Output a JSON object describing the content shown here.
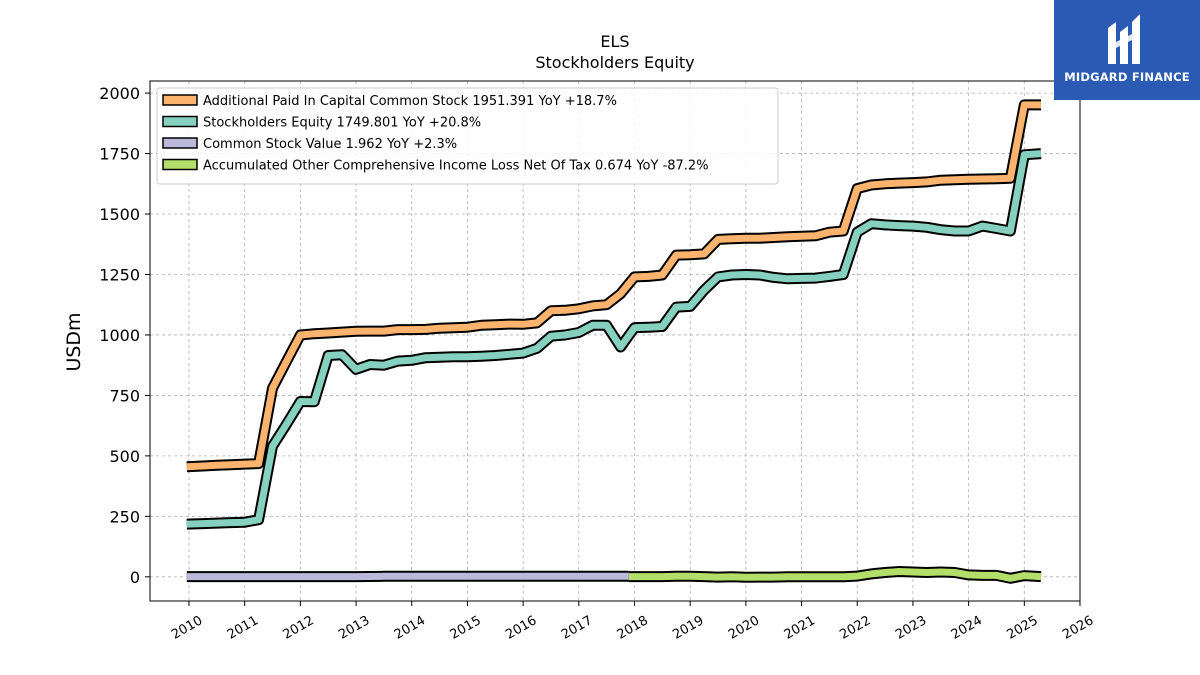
{
  "brand": {
    "name": "MIDGARD FINANCE",
    "logo_icon": "midgard-m-logo-icon",
    "background": "#2a5ab3"
  },
  "chart_data": {
    "type": "line",
    "title": "ELS",
    "subtitle": "Stockholders  Equity",
    "xlabel": "",
    "ylabel": "USDm",
    "xlim": [
      2009.3,
      2026.0
    ],
    "ylim": [
      -100,
      2050
    ],
    "x_ticks": [
      "2010",
      "2011",
      "2012",
      "2013",
      "2014",
      "2015",
      "2016",
      "2017",
      "2018",
      "2019",
      "2020",
      "2021",
      "2022",
      "2023",
      "2024",
      "2025",
      "2026"
    ],
    "y_ticks": [
      0,
      250,
      500,
      750,
      1000,
      1250,
      1500,
      1750,
      2000
    ],
    "grid": true,
    "legend_position": "top-left",
    "series": [
      {
        "name": "Additional Paid In Capital Common Stock",
        "legend_label": "Additional Paid In Capital Common Stock  1951.391 YoY +18.7%",
        "color": "#fbb36d",
        "x": [
          2009.96,
          2010.25,
          2010.5,
          2010.75,
          2011.0,
          2011.25,
          2011.5,
          2011.75,
          2012.0,
          2012.25,
          2012.5,
          2012.75,
          2013.0,
          2013.25,
          2013.5,
          2013.75,
          2014.0,
          2014.25,
          2014.5,
          2014.75,
          2015.0,
          2015.25,
          2015.5,
          2015.75,
          2016.0,
          2016.25,
          2016.5,
          2016.75,
          2017.0,
          2017.25,
          2017.5,
          2017.75,
          2018.0,
          2018.25,
          2018.5,
          2018.75,
          2019.0,
          2019.25,
          2019.5,
          2019.75,
          2020.0,
          2020.25,
          2020.5,
          2020.75,
          2021.0,
          2021.25,
          2021.5,
          2021.75,
          2022.0,
          2022.25,
          2022.5,
          2022.75,
          2023.0,
          2023.25,
          2023.5,
          2023.75,
          2024.0,
          2024.25,
          2024.5,
          2024.75,
          2025.0,
          2025.3
        ],
        "values": [
          455,
          458,
          461,
          463,
          466,
          468,
          780,
          890,
          1000,
          1005,
          1008,
          1012,
          1015,
          1016,
          1016,
          1022,
          1022,
          1023,
          1028,
          1030,
          1032,
          1040,
          1042,
          1045,
          1044,
          1050,
          1100,
          1102,
          1108,
          1120,
          1125,
          1170,
          1240,
          1242,
          1248,
          1330,
          1332,
          1335,
          1395,
          1398,
          1400,
          1400,
          1403,
          1406,
          1408,
          1410,
          1425,
          1430,
          1605,
          1620,
          1625,
          1628,
          1630,
          1633,
          1640,
          1642,
          1644,
          1645,
          1646,
          1648,
          1951,
          1951
        ]
      },
      {
        "name": "Stockholders Equity",
        "legend_label": "Stockholders Equity  1749.801 YoY +20.8%",
        "color": "#86d0bf",
        "x": [
          2009.96,
          2010.25,
          2010.5,
          2010.75,
          2011.0,
          2011.25,
          2011.5,
          2011.75,
          2012.0,
          2012.25,
          2012.5,
          2012.75,
          2013.0,
          2013.25,
          2013.5,
          2013.75,
          2014.0,
          2014.25,
          2014.5,
          2014.75,
          2015.0,
          2015.25,
          2015.5,
          2015.75,
          2016.0,
          2016.25,
          2016.5,
          2016.75,
          2017.0,
          2017.25,
          2017.5,
          2017.75,
          2018.0,
          2018.25,
          2018.5,
          2018.75,
          2019.0,
          2019.25,
          2019.5,
          2019.75,
          2020.0,
          2020.25,
          2020.5,
          2020.75,
          2021.0,
          2021.25,
          2021.5,
          2021.75,
          2022.0,
          2022.25,
          2022.5,
          2022.75,
          2023.0,
          2023.25,
          2023.5,
          2023.75,
          2024.0,
          2024.25,
          2024.5,
          2024.75,
          2025.0,
          2025.3
        ],
        "values": [
          218,
          220,
          222,
          224,
          226,
          236,
          540,
          630,
          725,
          724,
          915,
          918,
          858,
          878,
          875,
          892,
          895,
          906,
          908,
          910,
          910,
          912,
          915,
          920,
          925,
          945,
          995,
          1000,
          1010,
          1040,
          1040,
          950,
          1030,
          1032,
          1035,
          1115,
          1118,
          1185,
          1240,
          1248,
          1250,
          1248,
          1238,
          1232,
          1234,
          1235,
          1242,
          1250,
          1425,
          1460,
          1455,
          1452,
          1450,
          1445,
          1435,
          1430,
          1430,
          1450,
          1440,
          1430,
          1745,
          1750
        ]
      },
      {
        "name": "Common Stock Value",
        "legend_label": "Common Stock Value  1.962 YoY +2.3%",
        "color": "#bcb8da",
        "x": [
          2009.96,
          2010.5,
          2011.0,
          2011.5,
          2012.0,
          2012.5,
          2013.0,
          2013.5,
          2014.0,
          2014.5,
          2015.0,
          2015.5,
          2016.0,
          2016.5,
          2017.0,
          2017.5,
          2017.9
        ],
        "values": [
          1,
          1,
          1,
          1,
          1,
          1,
          1,
          2,
          2,
          2,
          2,
          2,
          2,
          2,
          2,
          2,
          2
        ]
      },
      {
        "name": "Accumulated Other Comprehensive Income Loss Net Of Tax",
        "legend_label": "Accumulated Other Comprehensive Income Loss Net Of Tax  0.674 YoY -87.2%",
        "color": "#b3de69",
        "x": [
          2017.9,
          2018.25,
          2018.5,
          2018.75,
          2019.0,
          2019.25,
          2019.5,
          2019.75,
          2020.0,
          2020.25,
          2020.5,
          2020.75,
          2021.0,
          2021.25,
          2021.5,
          2021.75,
          2022.0,
          2022.25,
          2022.5,
          2022.75,
          2023.0,
          2023.25,
          2023.5,
          2023.75,
          2024.0,
          2024.25,
          2024.5,
          2024.75,
          2025.0,
          2025.3
        ],
        "values": [
          1,
          1,
          1,
          2,
          2,
          1,
          -1,
          0,
          -2,
          -1,
          -1,
          0,
          0,
          0,
          0,
          0,
          3,
          12,
          18,
          22,
          20,
          18,
          20,
          18,
          8,
          6,
          6,
          -6,
          5,
          1
        ]
      }
    ]
  }
}
